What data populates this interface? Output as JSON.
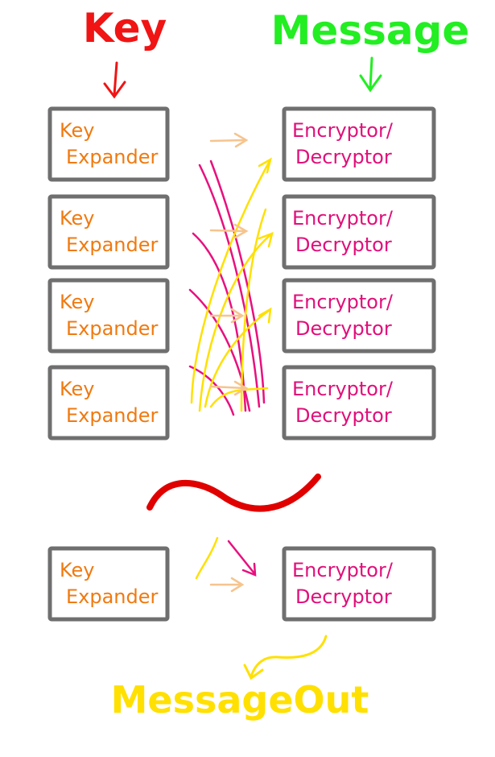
{
  "header": {
    "key_label": "Key",
    "message_label": "Message"
  },
  "colors": {
    "key": "#f01414",
    "message": "#22ee22",
    "expander_text": "#f07a10",
    "crypt_text": "#e0107a",
    "box_border": "#6f6f6f",
    "arrow_orange": "#f6c48e",
    "arrow_yellow": "#ffe000",
    "arrow_magenta": "#e8107e",
    "tilde": "#e00000",
    "output": "#ffe000"
  },
  "key_expander": {
    "line1": "Key",
    "line2": "Expander"
  },
  "encryptor": {
    "line1": "Encryptor/",
    "line2": "Decryptor"
  },
  "stages": [
    {
      "key_line1": "Key",
      "key_line2": "Expander",
      "enc_line1": "Encryptor/",
      "enc_line2": "Decryptor"
    },
    {
      "key_line1": "Key",
      "key_line2": "Expander",
      "enc_line1": "Encryptor/",
      "enc_line2": "Decryptor"
    },
    {
      "key_line1": "Key",
      "key_line2": "Expander",
      "enc_line1": "Encryptor/",
      "enc_line2": "Decryptor"
    },
    {
      "key_line1": "Key",
      "key_line2": "Expander",
      "enc_line1": "Encryptor/",
      "enc_line2": "Decryptor"
    },
    {
      "key_line1": "Key",
      "key_line2": "Expander",
      "enc_line1": "Encryptor/",
      "enc_line2": "Decryptor"
    }
  ],
  "output_label": "MessageOut"
}
